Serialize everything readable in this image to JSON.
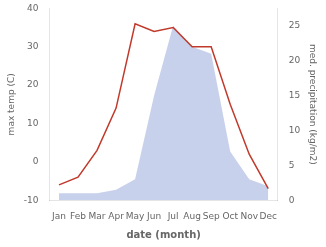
{
  "chart_data": {
    "type": "line",
    "xlabel": "date (month)",
    "ylabel": "max temp (C)",
    "y2label": "med. precipitation (kg/m2)",
    "categories": [
      "Jan",
      "Feb",
      "Mar",
      "Apr",
      "May",
      "Jun",
      "Jul",
      "Aug",
      "Sep",
      "Oct",
      "Nov",
      "Dec"
    ],
    "series": [
      {
        "type": "area",
        "axis": "y2",
        "color": "#aab8e0",
        "values": [
          1.0,
          1.0,
          1.0,
          1.5,
          3,
          15,
          25,
          22,
          21,
          7,
          3,
          2
        ]
      },
      {
        "type": "line",
        "color": "#c0392b",
        "values": [
          -6,
          -4,
          3,
          14,
          36,
          34,
          35,
          30,
          30,
          15,
          2,
          -7
        ]
      }
    ],
    "ylim": [
      -10,
      40
    ],
    "yticks": [
      -10,
      0,
      10,
      20,
      30,
      40
    ],
    "y2lim": [
      0,
      27.5
    ],
    "y2ticks": [
      0,
      5,
      10,
      15,
      20,
      25
    ],
    "grid": false
  }
}
